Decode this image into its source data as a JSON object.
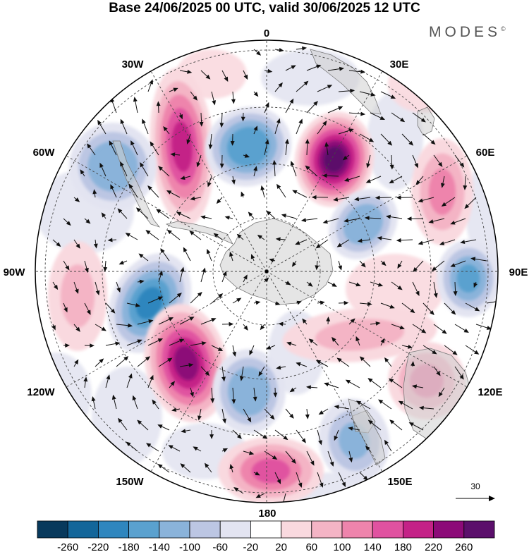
{
  "title": "Base 24/06/2025 00 UTC, valid 30/06/2025 12 UTC",
  "brand": "MODES",
  "brand_mark": "©",
  "map": {
    "projection": "south-polar-stereographic",
    "longitude_labels": [
      "0",
      "30E",
      "60E",
      "90E",
      "120E",
      "150E",
      "180",
      "150W",
      "120W",
      "90W",
      "60W",
      "30W"
    ],
    "reference_vector_label": "30",
    "anomalies": [
      {
        "name": "pos-30W",
        "value": 200
      },
      {
        "name": "neg-10W",
        "value": -180
      },
      {
        "name": "pos-20E",
        "value": 260
      },
      {
        "name": "neg-50E",
        "value": -140
      },
      {
        "name": "pos-65E",
        "value": 120
      },
      {
        "name": "neg-90E",
        "value": -160
      },
      {
        "name": "neg-60W",
        "value": -140
      },
      {
        "name": "pos-100W",
        "value": 60
      },
      {
        "name": "neg-120W",
        "value": -200
      },
      {
        "name": "pos-145W",
        "value": 220
      },
      {
        "name": "neg-165W",
        "value": -140
      },
      {
        "name": "pos-180",
        "value": 140
      },
      {
        "name": "neg-150E",
        "value": -120
      },
      {
        "name": "pos-120E",
        "value": 100
      },
      {
        "name": "pos-100E",
        "value": 60
      }
    ]
  },
  "colorbar": {
    "colors": [
      "#08395c",
      "#13669a",
      "#2f86be",
      "#5aa1cf",
      "#8ab3da",
      "#bcc6e3",
      "#e3e4f1",
      "#ffffff",
      "#f9d9df",
      "#f4b4c5",
      "#ee84ac",
      "#e052a0",
      "#c42287",
      "#8c0a78",
      "#5b0f6b"
    ],
    "labels": [
      "-260",
      "-220",
      "-180",
      "-140",
      "-100",
      "-60",
      "-20",
      "20",
      "60",
      "100",
      "140",
      "180",
      "220",
      "260"
    ]
  }
}
